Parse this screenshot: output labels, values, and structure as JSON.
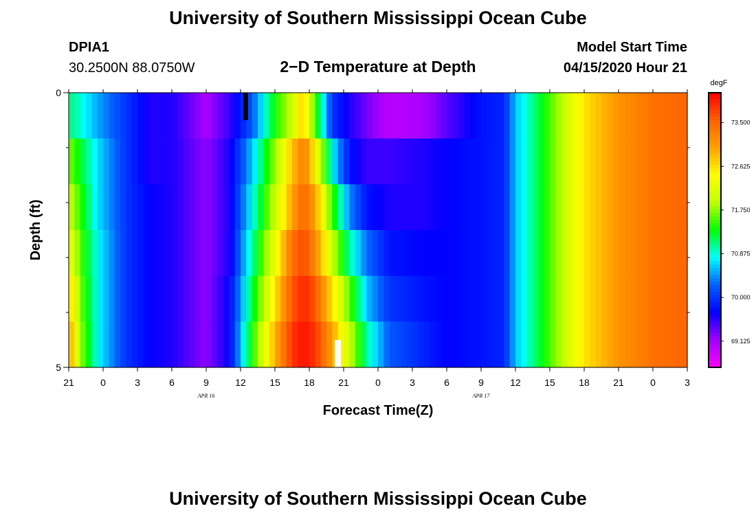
{
  "header": {
    "title": "University of Southern Mississippi Ocean Cube",
    "station_id": "DPIA1",
    "station_coords": "30.2500N 88.0750W",
    "chart_title": "2−D Temperature at Depth",
    "model_start_label": "Model Start Time",
    "model_start_value": "04/15/2020 Hour 21"
  },
  "footer": {
    "title": "University of Southern Mississippi Ocean Cube"
  },
  "colorbar": {
    "unit": "degF",
    "tick_labels": [
      "73.500",
      "72.625",
      "71.750",
      "70.875",
      "70.000",
      "69.125"
    ],
    "tick_values": [
      73.5,
      72.625,
      71.75,
      70.875,
      70.0,
      69.125
    ],
    "range": [
      68.6,
      74.1
    ],
    "colors": [
      "#ff00ff",
      "#a000ff",
      "#0000ff",
      "#0060ff",
      "#00ffff",
      "#00ff00",
      "#c0ff00",
      "#ffff00",
      "#ffa000",
      "#ff6000",
      "#ff0000"
    ]
  },
  "chart_data": {
    "type": "heatmap",
    "title": "2−D Temperature at Depth",
    "xlabel": "Forecast Time(Z)",
    "ylabel": "Depth (ft)",
    "x_hours": [
      0,
      54
    ],
    "x_tick_hours": [
      0,
      3,
      6,
      9,
      12,
      15,
      18,
      21,
      24,
      27,
      30,
      33,
      36,
      39,
      42,
      45,
      48,
      51,
      54
    ],
    "x_tick_labels": [
      "21",
      "0",
      "3",
      "6",
      "9",
      "12",
      "15",
      "18",
      "21",
      "0",
      "3",
      "6",
      "9",
      "12",
      "15",
      "18",
      "21",
      "0",
      "3"
    ],
    "date_labels": [
      {
        "text": "APR 16",
        "hour": 15
      },
      {
        "text": "APR 17",
        "hour": 39
      }
    ],
    "y_range": [
      0,
      5
    ],
    "y_tick_values": [
      0,
      5
    ],
    "y_tick_labels": [
      "0",
      "5"
    ],
    "depth_rows": [
      0.25,
      1.25,
      2.25,
      3.25,
      4.25,
      5.0
    ],
    "profile_hours": [
      0,
      1,
      2.5,
      5,
      7,
      9,
      12,
      14,
      16,
      18,
      19.5,
      20.5,
      21.5,
      23,
      24.5,
      26,
      28,
      31,
      33,
      36,
      38,
      39,
      41,
      43,
      45,
      48,
      51,
      54
    ],
    "temps": [
      [
        71.1,
        70.9,
        70.5,
        70.0,
        69.6,
        69.6,
        69.1,
        69.5,
        70.2,
        71.4,
        72.0,
        72.8,
        71.5,
        70.0,
        69.6,
        69.3,
        69.0,
        69.1,
        69.4,
        69.8,
        69.9,
        70.6,
        71.2,
        71.9,
        72.6,
        73.1,
        73.4,
        73.5
      ],
      [
        71.7,
        71.3,
        70.7,
        70.0,
        69.6,
        69.6,
        69.2,
        69.6,
        70.6,
        71.8,
        72.8,
        73.3,
        72.5,
        70.8,
        69.8,
        69.5,
        69.5,
        69.6,
        69.7,
        69.8,
        69.9,
        70.6,
        71.2,
        71.9,
        72.6,
        73.1,
        73.4,
        73.5
      ],
      [
        72.0,
        71.5,
        70.7,
        70.0,
        69.7,
        69.6,
        69.2,
        69.6,
        70.8,
        72.0,
        73.0,
        73.5,
        73.0,
        71.5,
        70.4,
        69.8,
        69.6,
        69.6,
        69.7,
        69.8,
        69.9,
        70.6,
        71.2,
        71.9,
        72.6,
        73.1,
        73.4,
        73.5
      ],
      [
        72.4,
        71.6,
        70.8,
        70.0,
        69.7,
        69.6,
        69.2,
        69.6,
        71.0,
        72.3,
        73.4,
        73.7,
        73.2,
        72.0,
        71.0,
        70.3,
        69.8,
        69.7,
        69.7,
        69.8,
        69.9,
        70.6,
        71.2,
        71.9,
        72.6,
        73.1,
        73.4,
        73.5
      ],
      [
        72.8,
        71.7,
        70.8,
        70.0,
        69.7,
        69.6,
        69.2,
        69.7,
        71.2,
        72.6,
        73.6,
        73.9,
        73.6,
        72.6,
        71.6,
        70.6,
        70.0,
        69.8,
        69.7,
        69.8,
        69.9,
        70.6,
        71.2,
        71.9,
        72.6,
        73.1,
        73.4,
        73.5
      ],
      [
        73.1,
        71.8,
        70.8,
        70.0,
        69.7,
        69.6,
        69.2,
        69.7,
        71.4,
        72.9,
        73.8,
        74.0,
        73.8,
        73.0,
        72.0,
        71.0,
        70.2,
        69.9,
        69.7,
        69.8,
        69.9,
        70.6,
        71.2,
        71.9,
        72.6,
        73.1,
        73.4,
        73.5
      ]
    ]
  }
}
